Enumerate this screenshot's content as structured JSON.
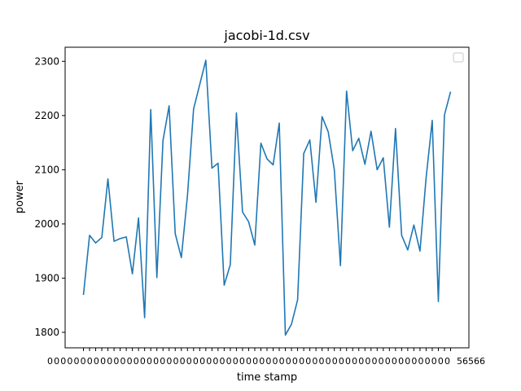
{
  "chart_data": {
    "type": "line",
    "title": "jacobi-1d.csv",
    "xlabel": "time stamp",
    "ylabel": "power",
    "ylim": [
      1771.4,
      2326
    ],
    "yticks": [
      1800,
      1900,
      2000,
      2100,
      2200,
      2300
    ],
    "grid": false,
    "legend": "upper right (empty)",
    "line_color": "#1f77b4",
    "series": [
      {
        "values": [
          1869,
          1979,
          1965,
          1975,
          2083,
          1968,
          1973,
          1976,
          1908,
          2011,
          1827,
          2211,
          1901,
          2154,
          2218,
          1982,
          1938,
          2052,
          2212,
          2257,
          2302,
          2103,
          2112,
          1887,
          1925,
          2205,
          2022,
          2004,
          1961,
          2149,
          2120,
          2109,
          2186,
          1795,
          1815,
          1860,
          2130,
          2155,
          2040,
          2198,
          2170,
          2100,
          1923,
          2245,
          2135,
          2158,
          2110,
          2171,
          2100,
          2122,
          1994,
          2176,
          1979,
          1952,
          1998,
          1950,
          2085,
          2191,
          1857,
          2201,
          2244
        ]
      }
    ],
    "xtick_labels": [
      "0000000000000000000000000000000000000000000000000000000000000",
      "56566"
    ]
  }
}
